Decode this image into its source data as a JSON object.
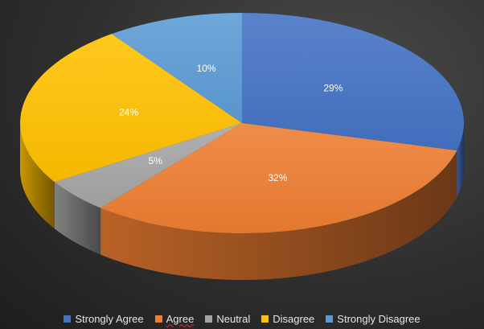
{
  "chart_data": {
    "type": "pie",
    "style": "3d",
    "title": "",
    "categories": [
      "Strongly Agree",
      "Agree",
      "Neutral",
      "Disagree",
      "Strongly Disagree"
    ],
    "values": [
      29,
      32,
      5,
      24,
      10
    ],
    "labels": [
      "29%",
      "32%",
      "5%",
      "24%",
      "10%"
    ],
    "colors": [
      "#4472c4",
      "#ed7d31",
      "#a5a5a5",
      "#ffc000",
      "#5b9bd5"
    ],
    "legend_position": "bottom",
    "misspelled_underline": [
      "Agree"
    ]
  }
}
